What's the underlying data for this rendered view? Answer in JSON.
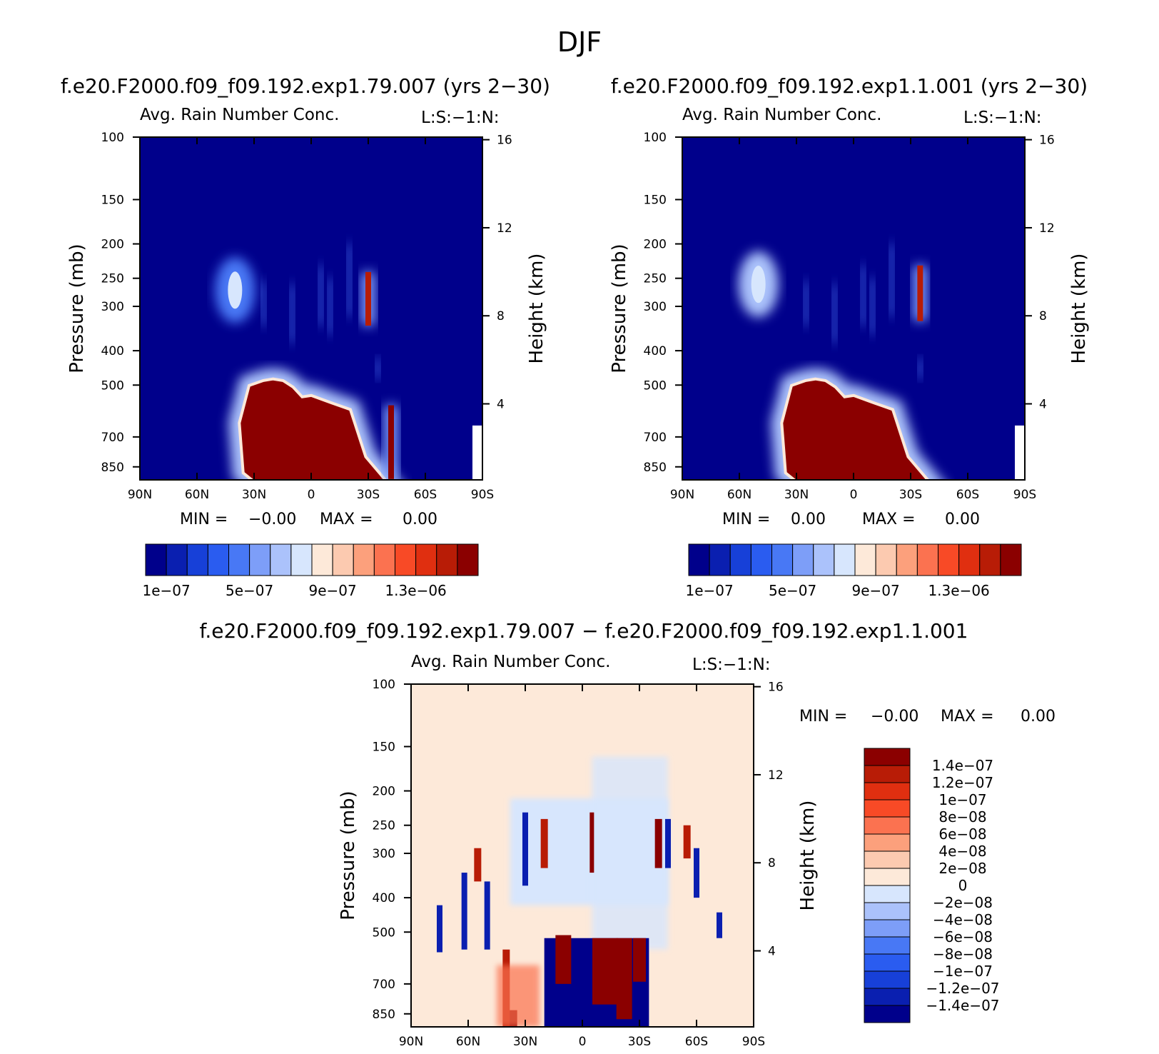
{
  "main_title": "DJF",
  "colors": {
    "blue_ramp": [
      "#00008b",
      "#0a1fb0",
      "#1740d8",
      "#2a5cf0",
      "#4878f5",
      "#7d9ef8",
      "#abc2fb",
      "#d7e6fd"
    ],
    "red_ramp": [
      "#fde9d9",
      "#fccab0",
      "#fca07c",
      "#fb7250",
      "#f84a26",
      "#e02f10",
      "#b81c06",
      "#8b0000"
    ],
    "diff_ramp": [
      "#00008b",
      "#0a1fb0",
      "#1740d8",
      "#2a5cf0",
      "#4878f5",
      "#7d9ef8",
      "#abc2fb",
      "#d7e6fd",
      "#fde9d9",
      "#fccab0",
      "#fca07c",
      "#fb7250",
      "#f84a26",
      "#e02f10",
      "#b81c06",
      "#8b0000"
    ]
  },
  "chart_data": [
    {
      "id": "panel-1",
      "type": "heatmap",
      "case_title": "f.e20.F2000.f09_f09.192.exp1.79.007 (yrs 2−30)",
      "title": "Avg. Rain Number Conc.",
      "title_right": "L:S:−1:N:",
      "xlabel": "",
      "ylabel": "Pressure (mb)",
      "ylabel_right": "Height (km)",
      "x_ticks": [
        "90N",
        "60N",
        "30N",
        "0",
        "30S",
        "60S",
        "90S"
      ],
      "y_ticks": [
        "100",
        "150",
        "200",
        "250",
        "300",
        "400",
        "500",
        "700",
        "850"
      ],
      "y_ticks_right": [
        "16",
        "12",
        "8",
        "4"
      ],
      "xlim": [
        90,
        -90
      ],
      "ylim": [
        100,
        925
      ],
      "stats": {
        "min_label": "MIN =",
        "min": "−0.00",
        "max_label": "MAX =",
        "max": "0.00"
      },
      "colorbar": {
        "labels": [
          "1e−07",
          "5e−07",
          "9e−07",
          "1.3e−06"
        ]
      },
      "features": [
        {
          "kind": "core",
          "lat": [
            -38,
            -28,
            -20,
            -10,
            0,
            5,
            10,
            15,
            20,
            25,
            32,
            37,
            35,
            30,
            -34,
            -37
          ],
          "p": [
            925,
            800,
            590,
            565,
            540,
            545,
            510,
            490,
            485,
            490,
            505,
            640,
            880,
            925,
            925,
            925
          ],
          "level": "max"
        },
        {
          "kind": "streak",
          "lat": -30,
          "p_top": 240,
          "p_bot": 340,
          "level": "high"
        },
        {
          "kind": "streak",
          "lat": -42,
          "p_top": 570,
          "p_bot": 920,
          "level": "max"
        },
        {
          "kind": "cloud",
          "lat": 40,
          "p_center": 270,
          "level": "mid"
        }
      ]
    },
    {
      "id": "panel-2",
      "type": "heatmap",
      "case_title": "f.e20.F2000.f09_f09.192.exp1.1.001 (yrs 2−30)",
      "title": "Avg. Rain Number Conc.",
      "title_right": "L:S:−1:N:",
      "xlabel": "",
      "ylabel": "Pressure (mb)",
      "ylabel_right": "Height (km)",
      "x_ticks": [
        "90N",
        "60N",
        "30N",
        "0",
        "30S",
        "60S",
        "90S"
      ],
      "y_ticks": [
        "100",
        "150",
        "200",
        "250",
        "300",
        "400",
        "500",
        "700",
        "850"
      ],
      "y_ticks_right": [
        "16",
        "12",
        "8",
        "4"
      ],
      "xlim": [
        90,
        -90
      ],
      "ylim": [
        100,
        925
      ],
      "stats": {
        "min_label": "MIN =",
        "min": "0.00",
        "max_label": "MAX =",
        "max": "0.00"
      },
      "colorbar": {
        "labels": [
          "1e−07",
          "5e−07",
          "9e−07",
          "1.3e−06"
        ]
      },
      "features": [
        {
          "kind": "core",
          "lat": [
            -38,
            -28,
            -20,
            -10,
            0,
            5,
            10,
            15,
            20,
            25,
            32,
            37,
            35,
            30,
            -34,
            -37
          ],
          "p": [
            925,
            800,
            590,
            565,
            540,
            545,
            510,
            490,
            485,
            490,
            505,
            640,
            880,
            925,
            925,
            925
          ],
          "level": "max"
        },
        {
          "kind": "streak",
          "lat": -35,
          "p_top": 230,
          "p_bot": 330,
          "level": "high"
        },
        {
          "kind": "cloud",
          "lat": 50,
          "p_center": 260,
          "level": "light"
        }
      ]
    },
    {
      "id": "panel-diff",
      "type": "heatmap",
      "case_title": "f.e20.F2000.f09_f09.192.exp1.79.007 − f.e20.F2000.f09_f09.192.exp1.1.001",
      "title": "Avg. Rain Number Conc.",
      "title_right": "L:S:−1:N:",
      "xlabel": "",
      "ylabel": "Pressure (mb)",
      "ylabel_right": "Height (km)",
      "x_ticks": [
        "90N",
        "60N",
        "30N",
        "0",
        "30S",
        "60S",
        "90S"
      ],
      "y_ticks": [
        "100",
        "150",
        "200",
        "250",
        "300",
        "400",
        "500",
        "700",
        "850"
      ],
      "y_ticks_right": [
        "16",
        "12",
        "8",
        "4"
      ],
      "xlim": [
        90,
        -90
      ],
      "ylim": [
        100,
        925
      ],
      "stats": {
        "min_label": "MIN =",
        "min": "−0.00",
        "max_label": "MAX =",
        "max": "0.00"
      },
      "colorbar": {
        "labels": [
          "1.4e−07",
          "1.2e−07",
          "1e−07",
          "8e−08",
          "6e−08",
          "4e−08",
          "2e−08",
          "0",
          "−2e−08",
          "−4e−08",
          "−6e−08",
          "−8e−08",
          "−1e−07",
          "−1.2e−07",
          "−1.4e−07"
        ]
      }
    }
  ]
}
